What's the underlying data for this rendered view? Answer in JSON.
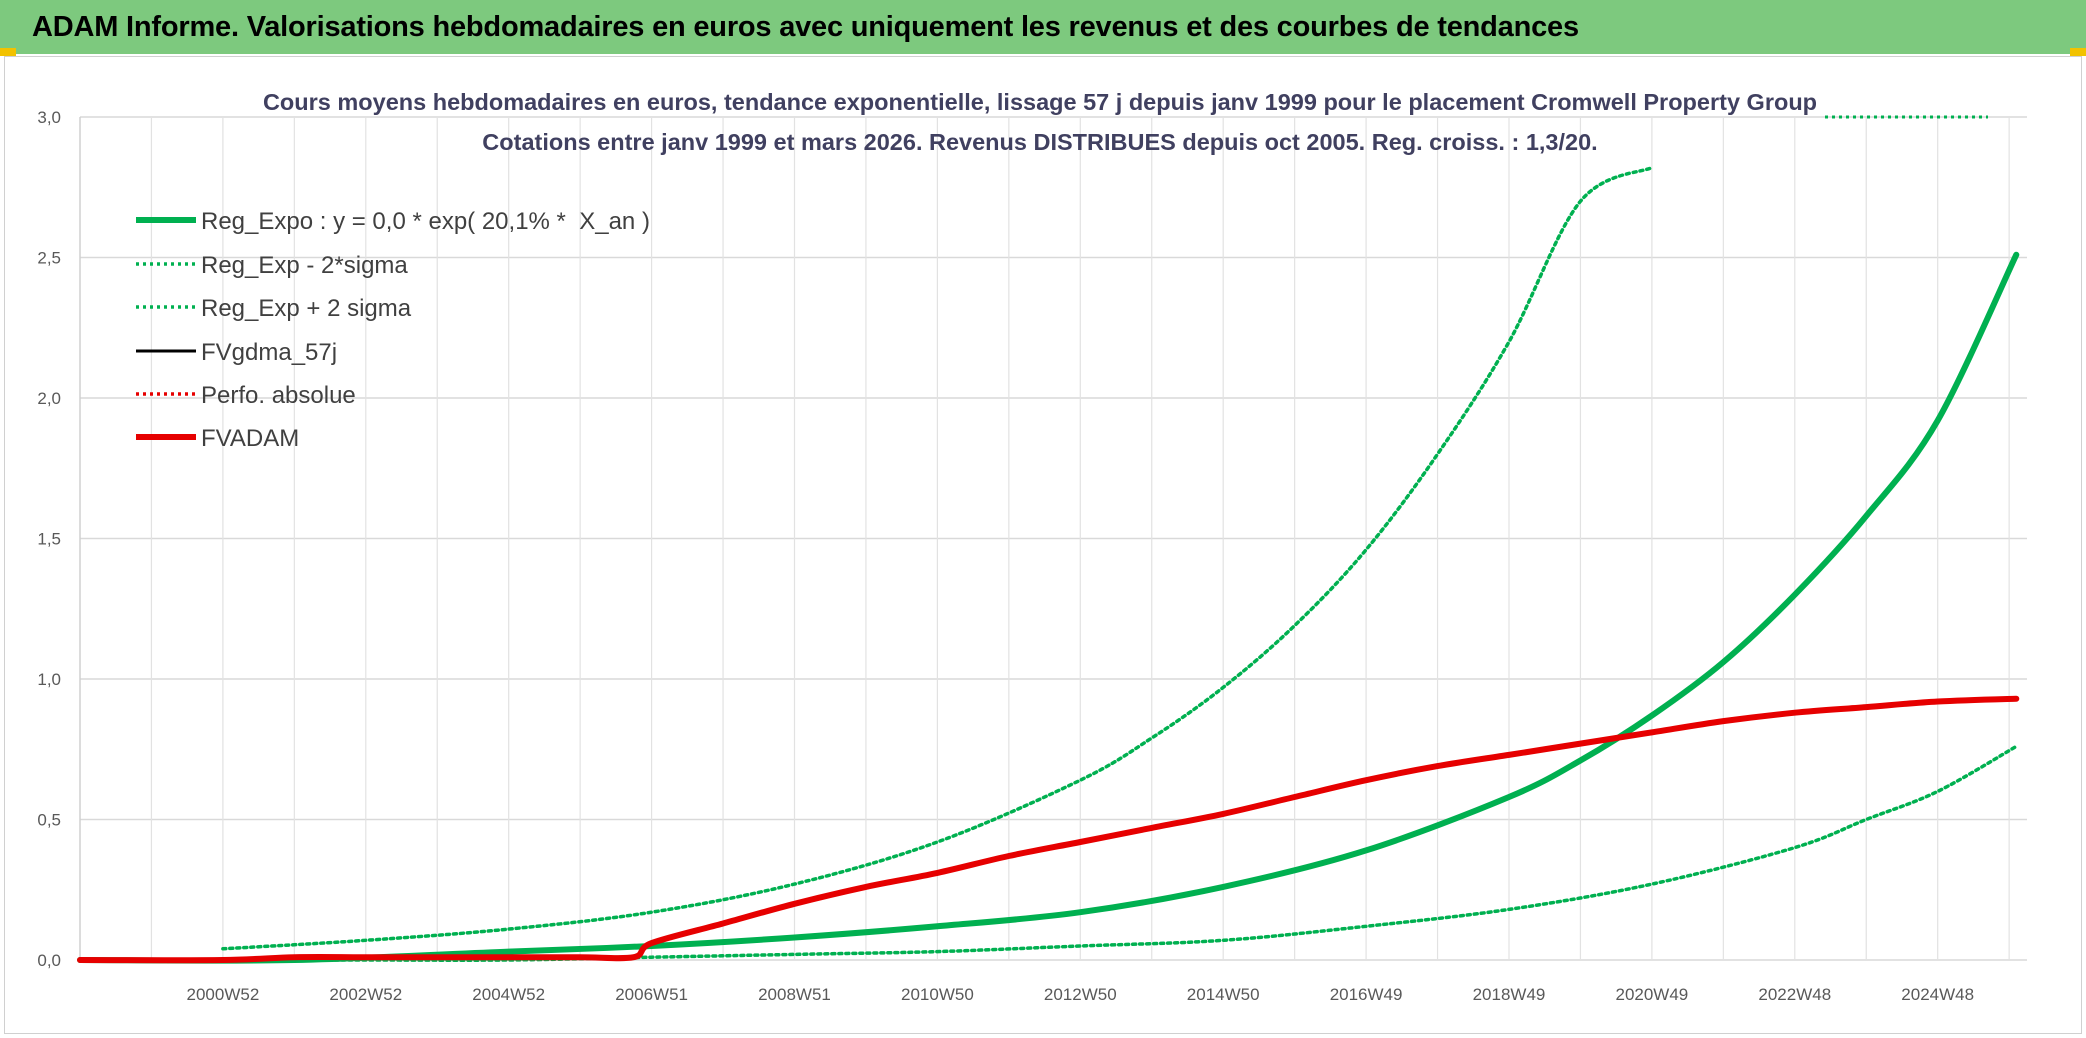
{
  "header": {
    "title": "ADAM Informe. Valorisations hebdomadaires en euros avec uniquement les revenus et des courbes de tendances"
  },
  "colors": {
    "header_bg": "#7dc97e",
    "green": "#00b050",
    "red": "#e60000",
    "black": "#000000",
    "grid": "#d9d9d9"
  },
  "chart_data": {
    "type": "line",
    "title": [
      "Cours moyens hebdomadaires en euros, tendance exponentielle, lissage 57 j depuis janv 1999 pour le placement Cromwell Property Group",
      "Cotations entre janv 1999 et mars 2026. Revenus DISTRIBUES depuis oct 2005. Reg. croiss. : 1,3/20."
    ],
    "xlabel": "",
    "ylabel": "",
    "ylim": [
      0,
      3.0
    ],
    "yticks": [
      "0,0",
      "0,5",
      "1,0",
      "1,5",
      "2,0",
      "2,5",
      "3,0"
    ],
    "xlim": [
      1999.0,
      2026.25
    ],
    "xtick_labels": [
      "2000W52",
      "2002W52",
      "2004W52",
      "2006W51",
      "2008W51",
      "2010W50",
      "2012W50",
      "2014W50",
      "2016W49",
      "2018W49",
      "2020W49",
      "2022W48",
      "2024W48"
    ],
    "legend_position": "top-left",
    "series": [
      {
        "name": "Reg_Expo : y = 0,0 * exp( 20,1% *  X_an )",
        "style": "solid-thick",
        "color": "#00b050",
        "x": [
          1999,
          2002,
          2005,
          2007,
          2009,
          2011,
          2013,
          2015,
          2017,
          2019,
          2020,
          2021,
          2022,
          2023,
          2024,
          2025,
          2026.1
        ],
        "values": [
          0.0,
          0.0,
          0.03,
          0.05,
          0.08,
          0.12,
          0.17,
          0.26,
          0.39,
          0.58,
          0.71,
          0.87,
          1.06,
          1.3,
          1.58,
          1.92,
          2.51
        ]
      },
      {
        "name": "Reg_Exp - 2*sigma",
        "style": "dotted",
        "color": "#00b050",
        "x": [
          2001,
          2003,
          2005,
          2007,
          2009,
          2011,
          2013,
          2015,
          2017,
          2019,
          2021,
          2023,
          2024,
          2025,
          2026.1
        ],
        "values": [
          0.0,
          0.0,
          0.0,
          0.01,
          0.02,
          0.03,
          0.05,
          0.07,
          0.12,
          0.18,
          0.27,
          0.4,
          0.5,
          0.6,
          0.76
        ]
      },
      {
        "name": "Reg_Exp + 2 sigma",
        "style": "dotted",
        "color": "#00b050",
        "x": [
          2001,
          2003,
          2005,
          2007,
          2009,
          2011,
          2013,
          2014,
          2015,
          2016,
          2017,
          2018,
          2019,
          2020,
          2021
        ],
        "values": [
          0.04,
          0.07,
          0.11,
          0.17,
          0.27,
          0.42,
          0.64,
          0.79,
          0.97,
          1.19,
          1.46,
          1.8,
          2.2,
          2.7,
          2.82
        ]
      },
      {
        "name": "FVgdma_57j",
        "style": "solid",
        "color": "#000000",
        "x": [],
        "values": []
      },
      {
        "name": "Perfo. absolue",
        "style": "dotted",
        "color": "#e60000",
        "x": [],
        "values": []
      },
      {
        "name": "FVADAM",
        "style": "solid-thick",
        "color": "#e60000",
        "x": [
          1999,
          2001,
          2002,
          2003,
          2004,
          2005,
          2006,
          2006.75,
          2007,
          2008,
          2009,
          2010,
          2011,
          2012,
          2013,
          2014,
          2015,
          2016,
          2017,
          2018,
          2019,
          2020,
          2021,
          2022,
          2023,
          2024,
          2025,
          2026.1
        ],
        "values": [
          0.0,
          0.0,
          0.01,
          0.01,
          0.01,
          0.01,
          0.01,
          0.01,
          0.06,
          0.13,
          0.2,
          0.26,
          0.31,
          0.37,
          0.42,
          0.47,
          0.52,
          0.58,
          0.64,
          0.69,
          0.73,
          0.77,
          0.81,
          0.85,
          0.88,
          0.9,
          0.92,
          0.93
        ]
      }
    ]
  }
}
